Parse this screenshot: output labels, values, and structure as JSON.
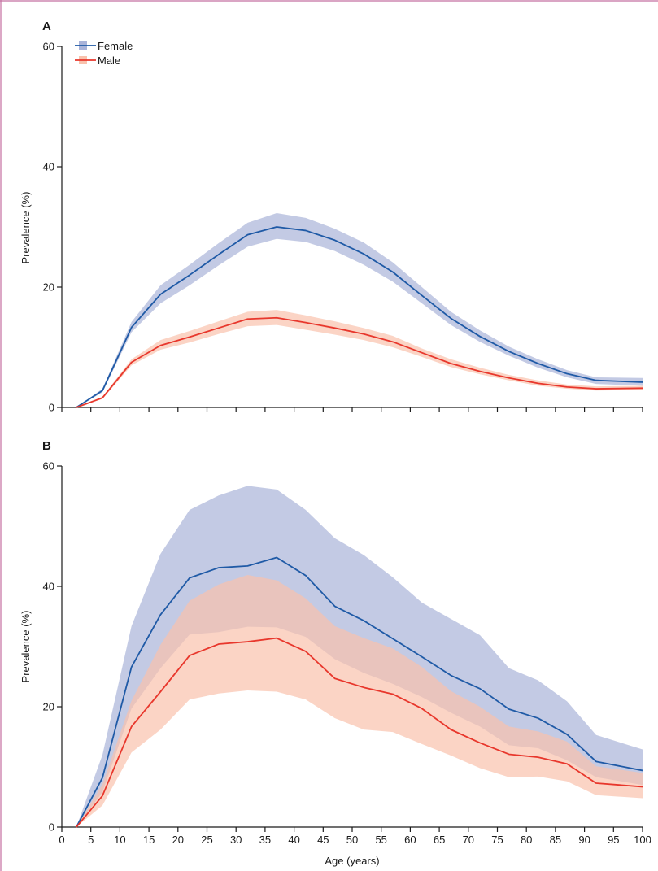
{
  "chart_data": [
    {
      "panel": "A",
      "type": "line",
      "xlabel": "",
      "ylabel": "Prevalence (%)",
      "xlim": [
        0,
        100
      ],
      "ylim": [
        0,
        60
      ],
      "yticks": [
        0,
        20,
        40,
        60
      ],
      "legend": "top-left",
      "x": [
        2.5,
        7,
        12,
        17,
        22,
        27,
        32,
        37,
        42,
        47,
        52,
        57,
        62,
        67,
        72,
        77,
        82,
        87,
        92,
        100
      ],
      "series": [
        {
          "name": "Female",
          "color": "#1f5aa6",
          "band_color": "#a9b3d9",
          "values": [
            0,
            2.8,
            13.3,
            18.8,
            22,
            25.4,
            28.7,
            30,
            29.4,
            27.8,
            25.5,
            22.5,
            18.6,
            14.8,
            11.8,
            9.3,
            7.3,
            5.6,
            4.5,
            4.2
          ],
          "lower": [
            0,
            2.5,
            12.5,
            17.3,
            20.3,
            23.6,
            26.7,
            28,
            27.5,
            26,
            23.7,
            20.9,
            17.3,
            13.7,
            10.9,
            8.6,
            6.6,
            5,
            3.9,
            3.6
          ],
          "upper": [
            0,
            3.1,
            14.2,
            20.3,
            23.7,
            27.3,
            30.7,
            32.3,
            31.5,
            29.7,
            27.4,
            24.1,
            20,
            15.9,
            12.8,
            10.1,
            8,
            6.2,
            5,
            4.9
          ]
        },
        {
          "name": "Male",
          "color": "#e8372c",
          "band_color": "#f9c2ad",
          "values": [
            0,
            1.6,
            7.5,
            10.3,
            11.7,
            13.2,
            14.7,
            14.9,
            14.1,
            13.2,
            12.2,
            10.9,
            9.1,
            7.3,
            6,
            4.9,
            4,
            3.4,
            3.1,
            3.2
          ],
          "lower": [
            0,
            1.4,
            7,
            9.6,
            10.8,
            12.2,
            13.5,
            13.7,
            12.9,
            12.1,
            11.2,
            10,
            8.4,
            6.7,
            5.5,
            4.5,
            3.6,
            3.1,
            2.8,
            2.9
          ],
          "upper": [
            0,
            1.8,
            8,
            11.2,
            12.7,
            14.3,
            15.9,
            16.2,
            15.3,
            14.3,
            13.2,
            11.9,
            9.8,
            8,
            6.6,
            5.4,
            4.5,
            3.8,
            3.5,
            3.6
          ]
        }
      ]
    },
    {
      "panel": "B",
      "type": "line",
      "xlabel": "Age (years)",
      "ylabel": "Prevalence (%)",
      "xlim": [
        0,
        100
      ],
      "ylim": [
        0,
        60
      ],
      "yticks": [
        0,
        20,
        40,
        60
      ],
      "xticks": [
        0,
        5,
        10,
        15,
        20,
        25,
        30,
        35,
        40,
        45,
        50,
        55,
        60,
        65,
        70,
        75,
        80,
        85,
        90,
        95,
        100
      ],
      "x": [
        2.5,
        7,
        12,
        17,
        22,
        27,
        32,
        37,
        42,
        47,
        52,
        57,
        62,
        67,
        72,
        77,
        82,
        87,
        92,
        100
      ],
      "series": [
        {
          "name": "Female",
          "color": "#1f5aa6",
          "band_color": "#a9b3d9",
          "values": [
            0,
            8.2,
            26.6,
            35.3,
            41.4,
            43.1,
            43.4,
            44.8,
            41.8,
            36.7,
            34.3,
            31.3,
            28.3,
            25.2,
            23,
            19.6,
            18.1,
            15.4,
            10.9,
            9.4
          ],
          "lower": [
            0,
            5.8,
            19.7,
            26.4,
            32,
            32.4,
            33.3,
            33.2,
            31.6,
            27.9,
            25.6,
            23.8,
            21.6,
            19,
            16.7,
            13.6,
            13.1,
            11.1,
            8.3,
            7
          ],
          "upper": [
            0,
            12,
            33.4,
            45.4,
            52.7,
            55.1,
            56.7,
            56.1,
            52.7,
            48,
            45.2,
            41.5,
            37.3,
            34.6,
            31.9,
            26.4,
            24.4,
            20.9,
            15.3,
            12.9
          ]
        },
        {
          "name": "Male",
          "color": "#e8372c",
          "band_color": "#f9c2ad",
          "values": [
            0,
            5.2,
            16.7,
            22.5,
            28.5,
            30.4,
            30.8,
            31.4,
            29.2,
            24.7,
            23.2,
            22.1,
            19.7,
            16.2,
            14,
            12.1,
            11.6,
            10.5,
            7.3,
            6.7
          ],
          "lower": [
            0,
            3.6,
            12.4,
            16.2,
            21.2,
            22.2,
            22.7,
            22.5,
            21.2,
            18.1,
            16.2,
            15.8,
            13.8,
            11.9,
            9.8,
            8.3,
            8.4,
            7.6,
            5.3,
            4.8
          ],
          "upper": [
            0,
            7.1,
            21,
            30.3,
            37.6,
            40.3,
            41.9,
            41,
            38,
            33.4,
            31.4,
            29.7,
            26.6,
            22.6,
            20,
            16.7,
            15.9,
            14.2,
            10.1,
            9
          ]
        }
      ]
    }
  ],
  "panels": {
    "a_letter": "A",
    "b_letter": "B"
  },
  "legend": {
    "female_label": "Female",
    "male_label": "Male"
  },
  "frame_color": "#c46fa0"
}
